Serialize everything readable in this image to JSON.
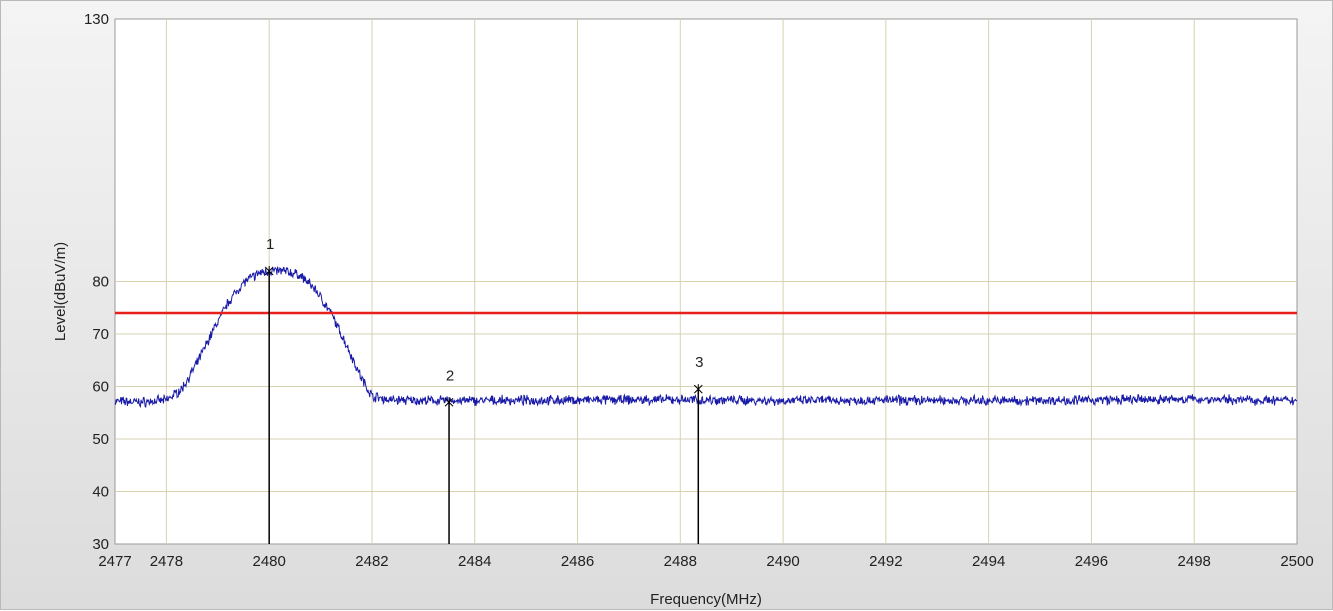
{
  "chart_data": {
    "type": "line",
    "xlabel": "Frequency(MHz)",
    "ylabel": "Level(dBuV/m)",
    "xlim": [
      2477,
      2500
    ],
    "ylim": [
      30,
      130
    ],
    "x_ticks": [
      2477,
      2478,
      2480,
      2482,
      2484,
      2486,
      2488,
      2490,
      2492,
      2494,
      2496,
      2498,
      2500
    ],
    "x_tick_labels": [
      "2477",
      "2478",
      "2480",
      "2482",
      "2484",
      "2486",
      "2488",
      "2490",
      "2492",
      "2494",
      "2496",
      "2498",
      "2500"
    ],
    "y_ticks": [
      30,
      40,
      50,
      60,
      70,
      80,
      130
    ],
    "y_tick_labels": [
      "30",
      "40",
      "50",
      "60",
      "70",
      "80",
      "130"
    ],
    "grid": true,
    "colors": {
      "trace": "#1a1aa8",
      "limit_line": "#e8201c",
      "grid": "#d6d2b0",
      "marker": "#000000"
    },
    "series": [
      {
        "values_description_free": true,
        "points": [
          [
            2477.0,
            57.2
          ],
          [
            2477.5,
            57.0
          ],
          [
            2478.0,
            57.4
          ],
          [
            2478.3,
            59.5
          ],
          [
            2478.6,
            64.5
          ],
          [
            2478.9,
            70.5
          ],
          [
            2479.2,
            76.0
          ],
          [
            2479.5,
            79.8
          ],
          [
            2479.8,
            81.6
          ],
          [
            2480.0,
            82.0
          ],
          [
            2480.3,
            82.0
          ],
          [
            2480.6,
            81.2
          ],
          [
            2480.9,
            78.5
          ],
          [
            2481.2,
            74.0
          ],
          [
            2481.5,
            68.0
          ],
          [
            2481.8,
            61.5
          ],
          [
            2482.0,
            58.2
          ],
          [
            2482.3,
            57.5
          ],
          [
            2483.0,
            57.3
          ],
          [
            2484.0,
            57.3
          ],
          [
            2486.0,
            57.4
          ],
          [
            2488.0,
            57.5
          ],
          [
            2490.0,
            57.3
          ],
          [
            2492.0,
            57.4
          ],
          [
            2494.0,
            57.3
          ],
          [
            2496.0,
            57.4
          ],
          [
            2498.0,
            57.6
          ],
          [
            2500.0,
            57.3
          ]
        ]
      }
    ],
    "limit_line": {
      "y": 74
    },
    "markers": [
      {
        "label": "1",
        "x": 2480.0,
        "y": 82.0
      },
      {
        "label": "2",
        "x": 2483.5,
        "y": 57.0
      },
      {
        "label": "3",
        "x": 2488.35,
        "y": 59.5
      }
    ]
  }
}
